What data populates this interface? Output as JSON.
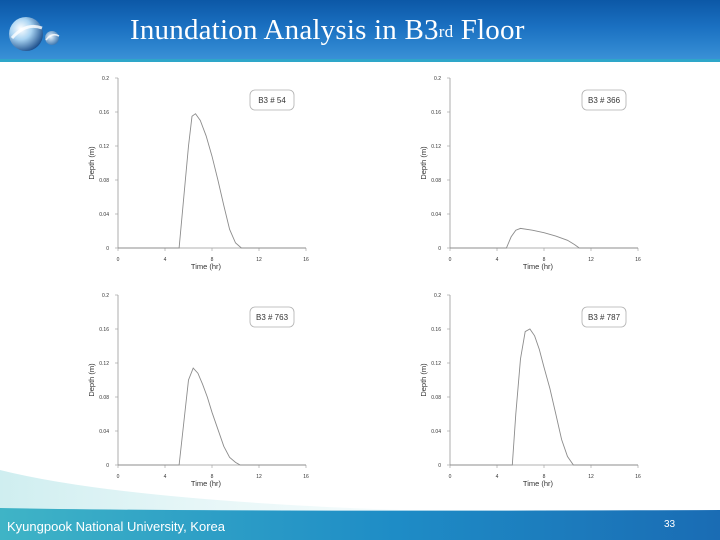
{
  "slide": {
    "title_main": "Inundation Analysis in B3",
    "title_sup": "rd",
    "title_end": " Floor",
    "footer_text": "Kyungpook National University, Korea",
    "page_number": "33"
  },
  "colors": {
    "title_bar": "#1b71c2",
    "footer_band": "#1f8fc6",
    "curve": "#8c8c8c"
  },
  "chart_data": [
    {
      "type": "line",
      "legend": "B3 # 54",
      "legend_position": "top-right",
      "xlabel": "Time (hr)",
      "ylabel": "Depth (m)",
      "xlim": [
        0,
        16
      ],
      "ylim": [
        0,
        0.2
      ],
      "x_ticks": [
        "0",
        "4",
        "8",
        "12",
        "16"
      ],
      "y_ticks": [
        "0",
        "0.04",
        "0.08",
        "0.12",
        "0.16",
        "0.2"
      ],
      "grid": false,
      "series": [
        {
          "x": [
            0,
            5.2,
            5.6,
            6.0,
            6.3,
            6.6,
            7.0,
            7.5,
            8.0,
            8.5,
            9.0,
            9.5,
            10.0,
            10.5,
            16
          ],
          "y": [
            0,
            0,
            0.06,
            0.12,
            0.155,
            0.158,
            0.15,
            0.132,
            0.108,
            0.08,
            0.05,
            0.022,
            0.006,
            0,
            0
          ]
        }
      ]
    },
    {
      "type": "line",
      "legend": "B3 # 366",
      "legend_position": "top-right",
      "xlabel": "Time (hr)",
      "ylabel": "Depth (m)",
      "xlim": [
        0,
        16
      ],
      "ylim": [
        0,
        0.2
      ],
      "x_ticks": [
        "0",
        "4",
        "8",
        "12",
        "16"
      ],
      "y_ticks": [
        "0",
        "0.04",
        "0.08",
        "0.12",
        "0.16",
        "0.2"
      ],
      "grid": false,
      "series": [
        {
          "x": [
            0,
            4.8,
            5.2,
            5.6,
            6.0,
            7.0,
            8.0,
            9.0,
            10.0,
            10.6,
            11.0,
            16
          ],
          "y": [
            0,
            0,
            0.013,
            0.021,
            0.023,
            0.021,
            0.018,
            0.014,
            0.009,
            0.004,
            0,
            0
          ]
        }
      ]
    },
    {
      "type": "line",
      "legend": "B3 # 763",
      "legend_position": "top-right",
      "xlabel": "Time (hr)",
      "ylabel": "Depth (m)",
      "xlim": [
        0,
        16
      ],
      "ylim": [
        0,
        0.2
      ],
      "x_ticks": [
        "0",
        "4",
        "8",
        "12",
        "16"
      ],
      "y_ticks": [
        "0",
        "0.04",
        "0.08",
        "0.12",
        "0.16",
        "0.2"
      ],
      "grid": false,
      "series": [
        {
          "x": [
            0,
            5.2,
            5.6,
            6.0,
            6.4,
            6.8,
            7.2,
            7.6,
            8.0,
            8.5,
            9.0,
            9.5,
            10.0,
            10.4,
            16
          ],
          "y": [
            0,
            0,
            0.05,
            0.1,
            0.114,
            0.108,
            0.095,
            0.08,
            0.062,
            0.042,
            0.022,
            0.009,
            0.003,
            0,
            0
          ]
        }
      ]
    },
    {
      "type": "line",
      "legend": "B3 # 787",
      "legend_position": "top-right",
      "xlabel": "Time (hr)",
      "ylabel": "Depth (m)",
      "xlim": [
        0,
        16
      ],
      "ylim": [
        0,
        0.2
      ],
      "x_ticks": [
        "0",
        "4",
        "8",
        "12",
        "16"
      ],
      "y_ticks": [
        "0",
        "0.04",
        "0.08",
        "0.12",
        "0.16",
        "0.2"
      ],
      "grid": false,
      "series": [
        {
          "x": [
            0,
            5.3,
            5.6,
            6.0,
            6.4,
            6.8,
            7.2,
            7.6,
            8.0,
            8.5,
            9.0,
            9.5,
            10.0,
            10.5,
            16
          ],
          "y": [
            0,
            0,
            0.06,
            0.125,
            0.157,
            0.16,
            0.152,
            0.136,
            0.115,
            0.09,
            0.06,
            0.03,
            0.01,
            0,
            0
          ]
        }
      ]
    }
  ]
}
